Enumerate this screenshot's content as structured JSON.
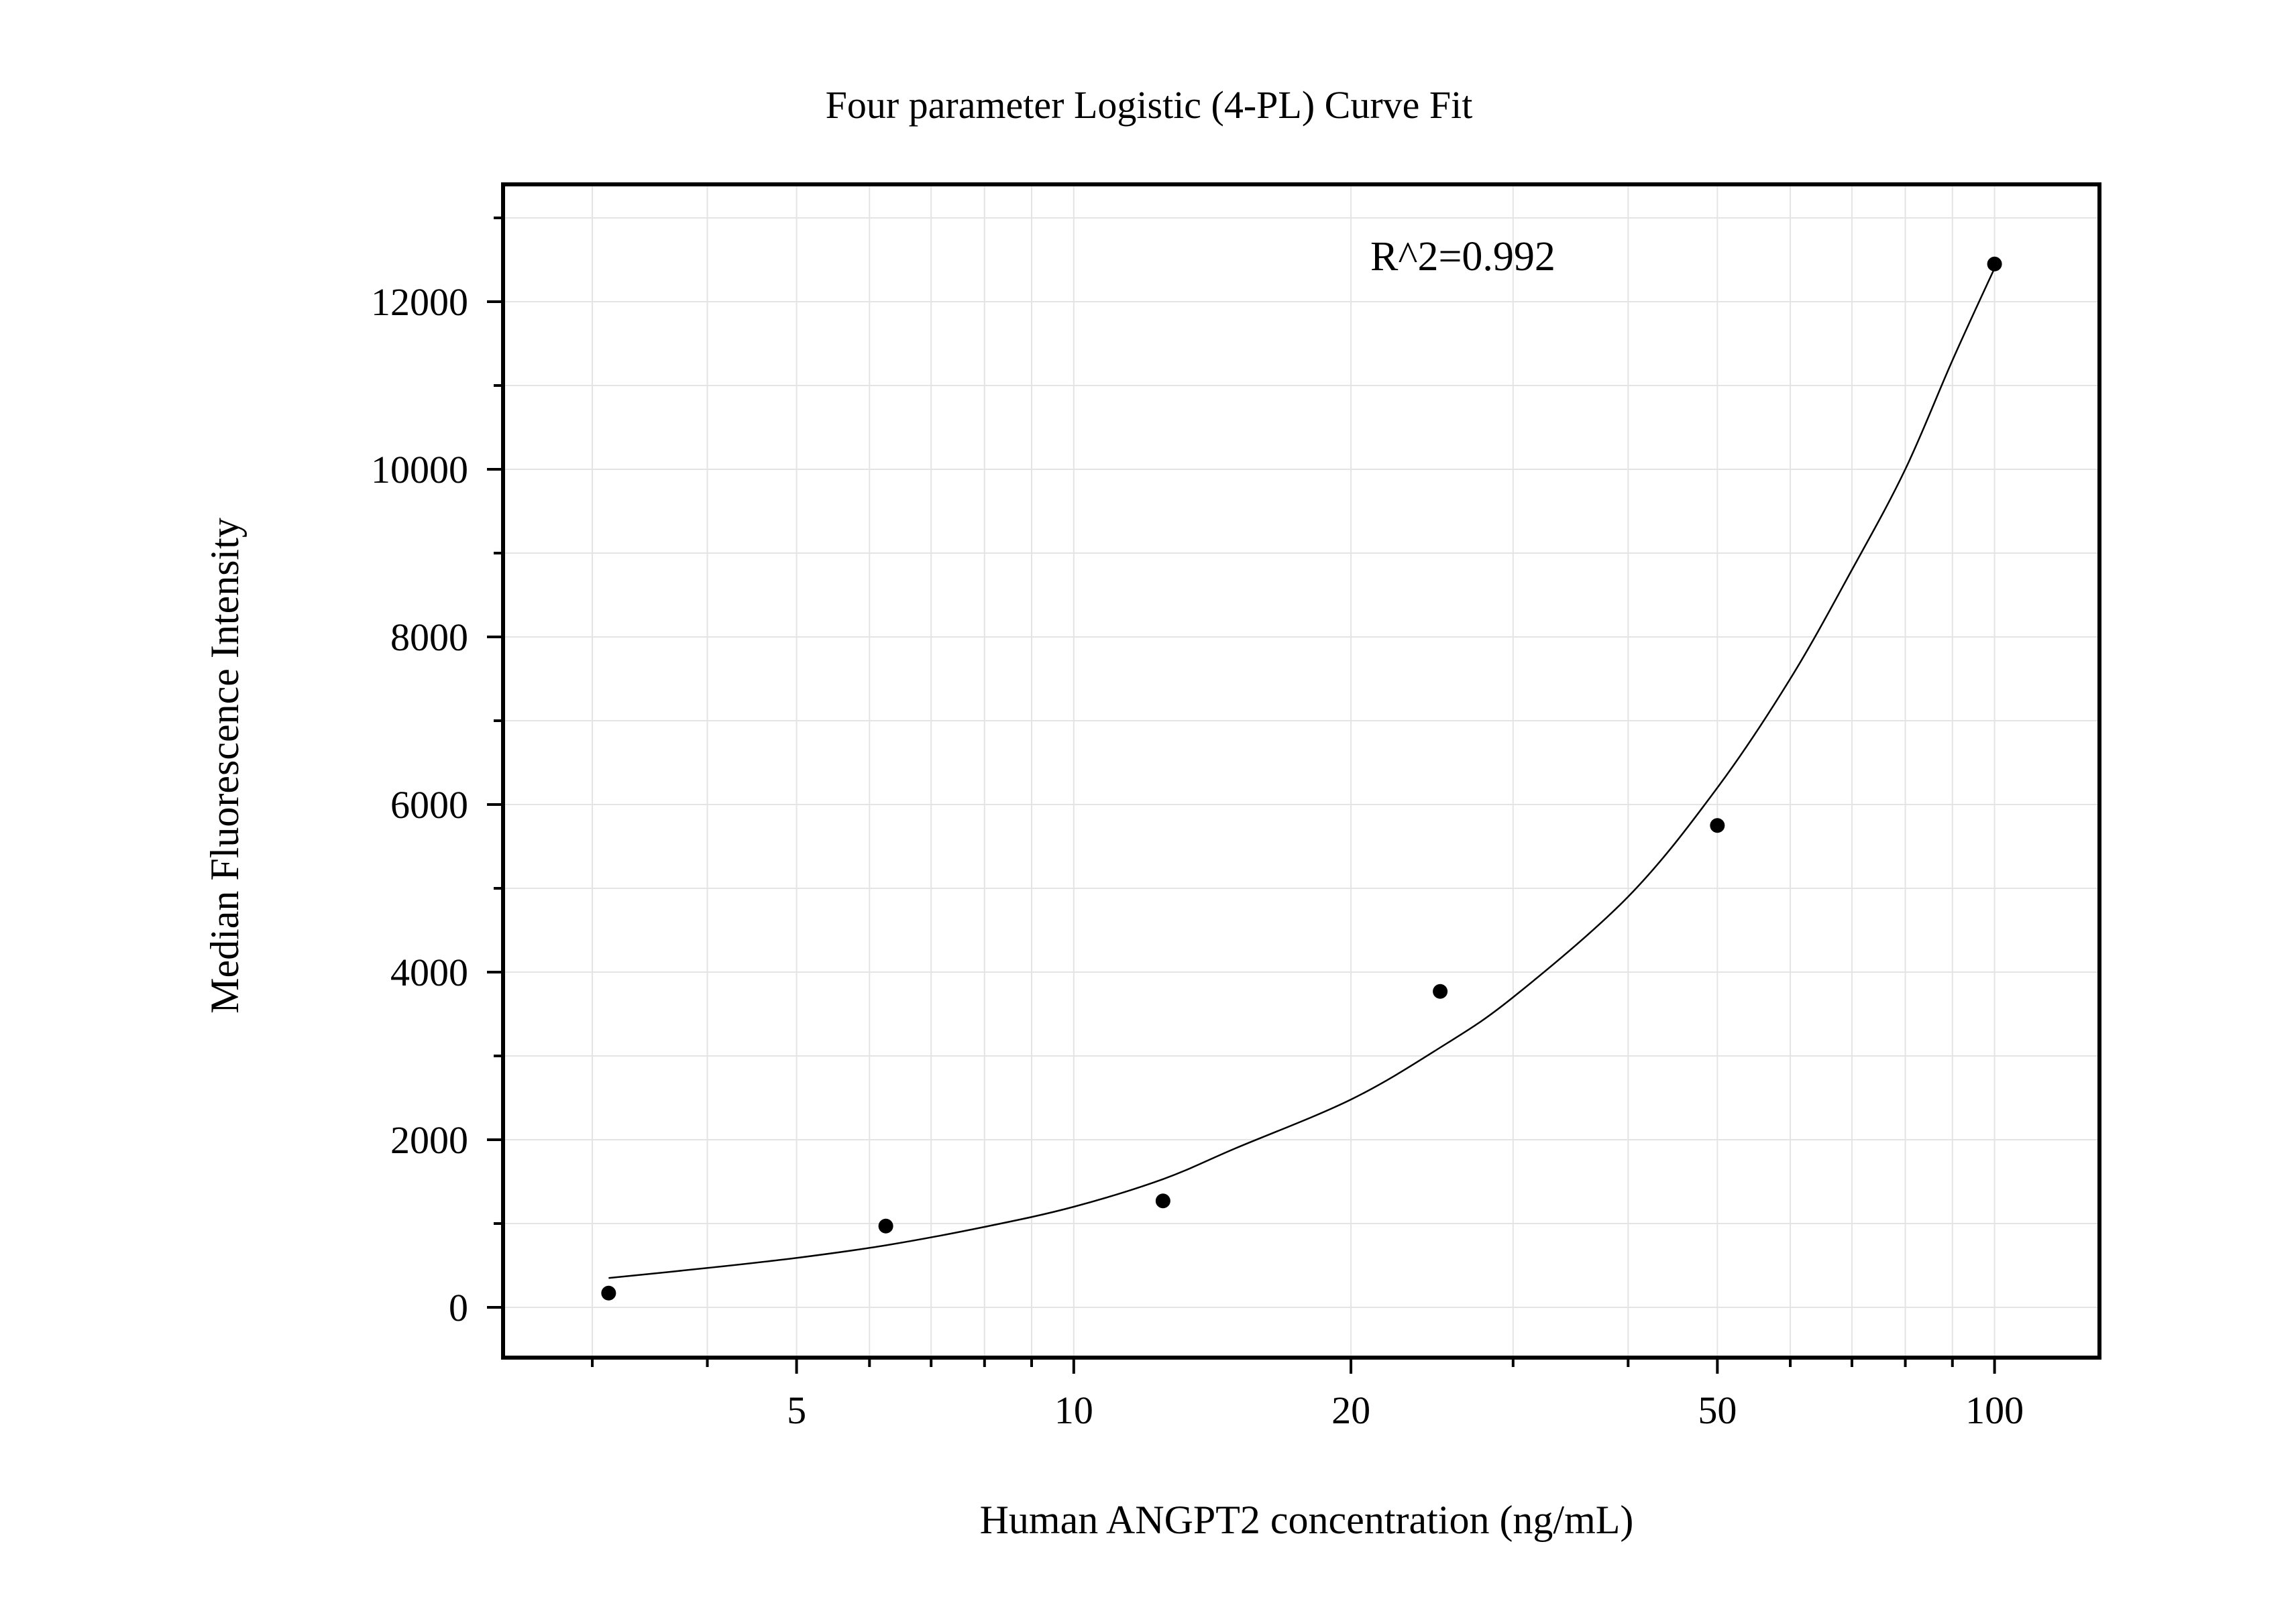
{
  "chart_data": {
    "type": "scatter",
    "title": "Four parameter Logistic (4-PL) Curve Fit",
    "xlabel": "Human ANGPT2 concentration (ng/mL)",
    "ylabel": "Median Fluorescence Intensity",
    "x_scale": "log",
    "xlim": [
      2.4,
      130
    ],
    "ylim": [
      -600,
      13400
    ],
    "x_ticks": [
      5,
      10,
      20,
      50,
      100
    ],
    "x_tick_labels": [
      "5",
      "10",
      "20",
      "50",
      "100"
    ],
    "y_ticks": [
      0,
      2000,
      4000,
      6000,
      8000,
      10000,
      12000
    ],
    "y_tick_labels": [
      "0",
      "2000",
      "4000",
      "6000",
      "8000",
      "10000",
      "12000"
    ],
    "grid": true,
    "annotation": "R^2=0.992",
    "series": [
      {
        "points": [
          {
            "x": 3.125,
            "y": 170
          },
          {
            "x": 6.25,
            "y": 970
          },
          {
            "x": 12.5,
            "y": 1270
          },
          {
            "x": 25,
            "y": 3770
          },
          {
            "x": 50,
            "y": 5750
          },
          {
            "x": 100,
            "y": 12450
          }
        ]
      }
    ],
    "fit_curve": {
      "points": [
        {
          "x": 3.125,
          "y": 350
        },
        {
          "x": 4,
          "y": 470
        },
        {
          "x": 5,
          "y": 590
        },
        {
          "x": 6.25,
          "y": 740
        },
        {
          "x": 8,
          "y": 960
        },
        {
          "x": 10,
          "y": 1200
        },
        {
          "x": 12.5,
          "y": 1530
        },
        {
          "x": 15,
          "y": 1900
        },
        {
          "x": 20,
          "y": 2480
        },
        {
          "x": 25,
          "y": 3100
        },
        {
          "x": 30,
          "y": 3700
        },
        {
          "x": 40,
          "y": 4900
        },
        {
          "x": 50,
          "y": 6200
        },
        {
          "x": 60,
          "y": 7500
        },
        {
          "x": 70,
          "y": 8800
        },
        {
          "x": 80,
          "y": 10000
        },
        {
          "x": 90,
          "y": 11300
        },
        {
          "x": 100,
          "y": 12400
        }
      ]
    },
    "colors": {
      "points": "#000000",
      "curve": "#000000",
      "grid": "#e4e4e4",
      "frame": "#000000"
    }
  }
}
